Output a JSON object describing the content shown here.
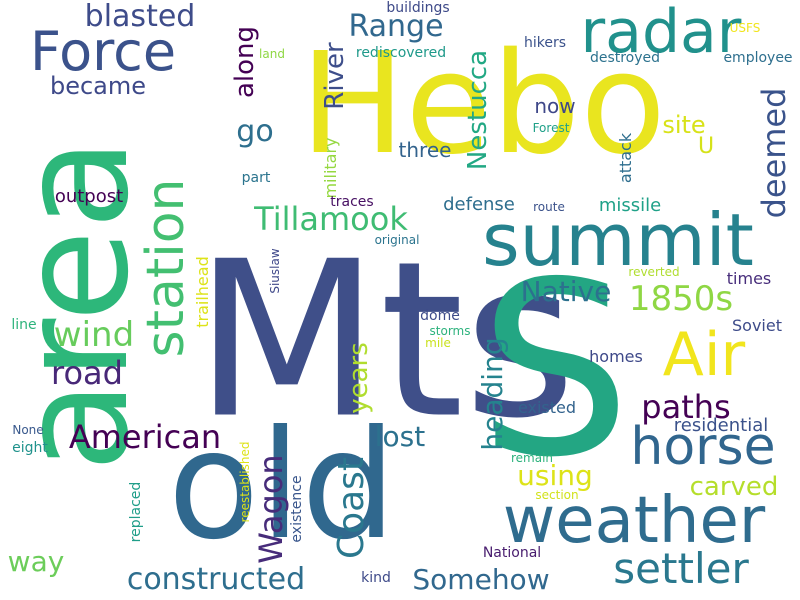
{
  "words": [
    {
      "text": "Hebo",
      "color": "#e9e51f"
    },
    {
      "text": "Mts",
      "color": "#3f4f89"
    },
    {
      "text": "S",
      "color": "#23a683"
    },
    {
      "text": "area",
      "color": "#2db77a"
    },
    {
      "text": "old",
      "color": "#30688e"
    },
    {
      "text": "summit",
      "color": "#26828e"
    },
    {
      "text": "weather",
      "color": "#2f6c8e"
    },
    {
      "text": "radar",
      "color": "#21918c"
    },
    {
      "text": "Force",
      "color": "#3b528b"
    },
    {
      "text": "station",
      "color": "#43bf71"
    },
    {
      "text": "Air",
      "color": "#f1e51d"
    },
    {
      "text": "horse",
      "color": "#31668e"
    },
    {
      "text": "settler",
      "color": "#2a788e"
    },
    {
      "text": "Tillamook",
      "color": "#3fbc73"
    },
    {
      "text": "American",
      "color": "#440154"
    },
    {
      "text": "Coast",
      "color": "#2a788e"
    },
    {
      "text": "Range",
      "color": "#31688e"
    },
    {
      "text": "Native",
      "color": "#2c718e"
    },
    {
      "text": "1850s",
      "color": "#8fd744"
    },
    {
      "text": "constructed",
      "color": "#2e6e8e"
    },
    {
      "text": "Somehow",
      "color": "#31688e"
    },
    {
      "text": "blasted",
      "color": "#3e4c8a"
    },
    {
      "text": "paths",
      "color": "#440154"
    },
    {
      "text": "deemed",
      "color": "#3a538b"
    },
    {
      "text": "wind",
      "color": "#67cc5c"
    },
    {
      "text": "road",
      "color": "#482878"
    },
    {
      "text": "Wagon",
      "color": "#472c7a"
    },
    {
      "text": "lost",
      "color": "#2c718e"
    },
    {
      "text": "heading",
      "color": "#25838e"
    },
    {
      "text": "carved",
      "color": "#b5de2b"
    },
    {
      "text": "using",
      "color": "#dde318"
    },
    {
      "text": "years",
      "color": "#b0dd2f"
    },
    {
      "text": "River",
      "color": "#3d4e8a"
    },
    {
      "text": "Nestucca",
      "color": "#22a884"
    },
    {
      "text": "way",
      "color": "#6ccd5a"
    },
    {
      "text": "along",
      "color": "#440154"
    },
    {
      "text": "became",
      "color": "#3e4989"
    },
    {
      "text": "go",
      "color": "#2e6f8e"
    },
    {
      "text": "site",
      "color": "#d8e219"
    },
    {
      "text": "U",
      "color": "#d5e21a"
    },
    {
      "text": "now",
      "color": "#3f4889"
    },
    {
      "text": "three",
      "color": "#33638d"
    },
    {
      "text": "outpost",
      "color": "#440154"
    },
    {
      "text": "missile",
      "color": "#1fa188"
    },
    {
      "text": "defense",
      "color": "#2e6e8e"
    },
    {
      "text": "attack",
      "color": "#2e6e8e"
    },
    {
      "text": "military",
      "color": "#95d840"
    },
    {
      "text": "buildings",
      "color": "#3e4a89"
    },
    {
      "text": "rediscovered",
      "color": "#1f998a"
    },
    {
      "text": "destroyed",
      "color": "#2c728e"
    },
    {
      "text": "hikers",
      "color": "#3b528b"
    },
    {
      "text": "USFS",
      "color": "#f1e51d"
    },
    {
      "text": "employee",
      "color": "#2e6f8e"
    },
    {
      "text": "land",
      "color": "#8fd744"
    },
    {
      "text": "Forest",
      "color": "#1fa088"
    },
    {
      "text": "part",
      "color": "#2b748e"
    },
    {
      "text": "traces",
      "color": "#471063"
    },
    {
      "text": "route",
      "color": "#3b528b"
    },
    {
      "text": "original",
      "color": "#2b748e"
    },
    {
      "text": "Siuslaw",
      "color": "#3f4889"
    },
    {
      "text": "trailhead",
      "color": "#dde318"
    },
    {
      "text": "reverted",
      "color": "#b0dd2f"
    },
    {
      "text": "times",
      "color": "#472d7b"
    },
    {
      "text": "Soviet",
      "color": "#3e4c8a"
    },
    {
      "text": "line",
      "color": "#2eb37c"
    },
    {
      "text": "storms",
      "color": "#2db27d"
    },
    {
      "text": "mile",
      "color": "#cae11f"
    },
    {
      "text": "dome",
      "color": "#3e4c8a"
    },
    {
      "text": "homes",
      "color": "#3e4989"
    },
    {
      "text": "existed",
      "color": "#33638d"
    },
    {
      "text": "residential",
      "color": "#3b528b"
    },
    {
      "text": "None",
      "color": "#38588c"
    },
    {
      "text": "eight",
      "color": "#20928c"
    },
    {
      "text": "reestablished",
      "color": "#dde318"
    },
    {
      "text": "existence",
      "color": "#39568c"
    },
    {
      "text": "replaced",
      "color": "#1f9e89"
    },
    {
      "text": "remain",
      "color": "#2db27d"
    },
    {
      "text": "section",
      "color": "#d2e21b"
    },
    {
      "text": "National",
      "color": "#481c6e"
    },
    {
      "text": "kind",
      "color": "#3e4a89"
    }
  ]
}
